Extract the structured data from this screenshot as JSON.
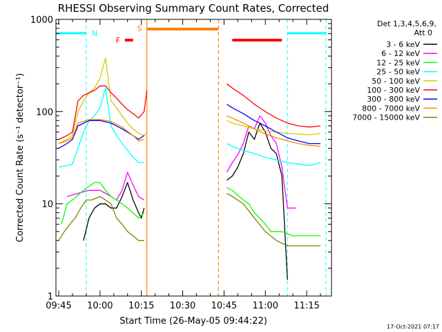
{
  "chart_data": {
    "type": "line",
    "title": "RHESSI Observing Summary Count Rates, Corrected",
    "ylabel": "Corrected Count Rate (s⁻¹ detector⁻¹)",
    "xlabel": "Start Time (26-May-05 09:44:22)",
    "footer": "17-Oct-2021 07:17",
    "y_scale": "log",
    "ylim": [
      1,
      1000
    ],
    "xlim": [
      "09:44",
      "11:24"
    ],
    "y_ticks": [
      {
        "v": 1,
        "label": "1"
      },
      {
        "v": 10,
        "label": "10"
      },
      {
        "v": 100,
        "label": "100"
      },
      {
        "v": 1000,
        "label": "1000"
      }
    ],
    "x_ticks": [
      {
        "t": "09:45",
        "label": "09:45"
      },
      {
        "t": "10:00",
        "label": "10:00"
      },
      {
        "t": "10:15",
        "label": "10:15"
      },
      {
        "t": "10:30",
        "label": "10:30"
      },
      {
        "t": "10:45",
        "label": "10:45"
      },
      {
        "t": "11:00",
        "label": "11:00"
      },
      {
        "t": "11:15",
        "label": "11:15"
      }
    ],
    "legend": {
      "header": [
        "Det 1,3,4,5,6,9,",
        "Att 0"
      ],
      "position": "right"
    },
    "series": [
      {
        "name": "3 - 6 keV",
        "color": "#000000",
        "segments": [
          [
            [
              "09:54",
              4
            ],
            [
              "09:56",
              7
            ],
            [
              "09:58",
              9
            ],
            [
              "10:00",
              10
            ],
            [
              "10:02",
              10
            ],
            [
              "10:04",
              9
            ],
            [
              "10:06",
              9
            ],
            [
              "10:08",
              12
            ],
            [
              "10:10",
              17
            ],
            [
              "10:12",
              11
            ],
            [
              "10:14",
              8
            ],
            [
              "10:15",
              7
            ],
            [
              "10:16",
              9
            ]
          ],
          [
            [
              "10:46",
              18
            ],
            [
              "10:48",
              20
            ],
            [
              "10:50",
              25
            ],
            [
              "10:52",
              35
            ],
            [
              "10:54",
              60
            ],
            [
              "10:56",
              50
            ],
            [
              "10:58",
              75
            ],
            [
              "11:00",
              60
            ],
            [
              "11:02",
              40
            ],
            [
              "11:04",
              35
            ],
            [
              "11:06",
              20
            ],
            [
              "11:08",
              1.5
            ]
          ]
        ]
      },
      {
        "name": "6 - 12 keV",
        "color": "#ff00ff",
        "segments": [
          [
            [
              "09:48",
              12
            ],
            [
              "09:52",
              13
            ],
            [
              "09:56",
              14
            ],
            [
              "10:00",
              14
            ],
            [
              "10:02",
              13
            ],
            [
              "10:04",
              12
            ],
            [
              "10:06",
              11
            ],
            [
              "10:08",
              14
            ],
            [
              "10:10",
              22
            ],
            [
              "10:12",
              16
            ],
            [
              "10:14",
              12
            ],
            [
              "10:16",
              11
            ]
          ],
          [
            [
              "10:46",
              22
            ],
            [
              "10:48",
              28
            ],
            [
              "10:50",
              34
            ],
            [
              "10:52",
              45
            ],
            [
              "10:54",
              70
            ],
            [
              "10:56",
              65
            ],
            [
              "10:58",
              90
            ],
            [
              "11:00",
              75
            ],
            [
              "11:02",
              55
            ],
            [
              "11:04",
              45
            ],
            [
              "11:06",
              25
            ],
            [
              "11:08",
              9
            ],
            [
              "11:11",
              9
            ]
          ]
        ]
      },
      {
        "name": "12 - 25 keV",
        "color": "#00ff00",
        "segments": [
          [
            [
              "09:46",
              6
            ],
            [
              "09:48",
              10
            ],
            [
              "09:50",
              11
            ],
            [
              "09:54",
              14
            ],
            [
              "09:58",
              17
            ],
            [
              "10:00",
              17
            ],
            [
              "10:02",
              14
            ],
            [
              "10:04",
              12
            ],
            [
              "10:06",
              11
            ],
            [
              "10:08",
              10
            ],
            [
              "10:10",
              9
            ],
            [
              "10:12",
              8
            ],
            [
              "10:14",
              7
            ],
            [
              "10:16",
              8
            ]
          ],
          [
            [
              "10:46",
              15
            ],
            [
              "10:48",
              14
            ],
            [
              "10:52",
              11
            ],
            [
              "10:54",
              10
            ],
            [
              "10:56",
              8
            ],
            [
              "10:58",
              7
            ],
            [
              "11:00",
              6
            ],
            [
              "11:02",
              5
            ],
            [
              "11:04",
              5
            ],
            [
              "11:06",
              5
            ],
            [
              "11:10",
              4.5
            ],
            [
              "11:14",
              4.5
            ],
            [
              "11:18",
              4.5
            ],
            [
              "11:20",
              4.5
            ]
          ]
        ]
      },
      {
        "name": "25 - 50 keV",
        "color": "#00ffff",
        "segments": [
          [
            [
              "09:45",
              25
            ],
            [
              "09:48",
              26
            ],
            [
              "09:50",
              27
            ],
            [
              "09:52",
              40
            ],
            [
              "09:54",
              60
            ],
            [
              "09:56",
              80
            ],
            [
              "09:58",
              90
            ],
            [
              "10:00",
              110
            ],
            [
              "10:02",
              180
            ],
            [
              "10:04",
              70
            ],
            [
              "10:06",
              55
            ],
            [
              "10:08",
              45
            ],
            [
              "10:10",
              38
            ],
            [
              "10:12",
              32
            ],
            [
              "10:14",
              28
            ],
            [
              "10:16",
              28
            ]
          ],
          [
            [
              "10:46",
              45
            ],
            [
              "10:48",
              42
            ],
            [
              "10:52",
              38
            ],
            [
              "10:56",
              35
            ],
            [
              "11:00",
              32
            ],
            [
              "11:04",
              30
            ],
            [
              "11:08",
              28
            ],
            [
              "11:12",
              27
            ],
            [
              "11:16",
              26
            ],
            [
              "11:20",
              28
            ]
          ]
        ]
      },
      {
        "name": "50 - 100 keV",
        "color": "#cccc00",
        "segments": [
          [
            [
              "09:45",
              45
            ],
            [
              "09:48",
              50
            ],
            [
              "09:50",
              55
            ],
            [
              "09:52",
              100
            ],
            [
              "09:54",
              130
            ],
            [
              "09:56",
              160
            ],
            [
              "09:58",
              180
            ],
            [
              "10:00",
              230
            ],
            [
              "10:02",
              380
            ],
            [
              "10:04",
              130
            ],
            [
              "10:06",
              110
            ],
            [
              "10:08",
              90
            ],
            [
              "10:10",
              75
            ],
            [
              "10:12",
              65
            ],
            [
              "10:14",
              58
            ],
            [
              "10:16",
              55
            ],
            [
              "10:17",
              60
            ]
          ],
          [
            [
              "10:46",
              80
            ],
            [
              "10:48",
              75
            ],
            [
              "10:52",
              70
            ],
            [
              "10:56",
              65
            ],
            [
              "11:00",
              62
            ],
            [
              "11:04",
              60
            ],
            [
              "11:08",
              58
            ],
            [
              "11:12",
              57
            ],
            [
              "11:16",
              56
            ],
            [
              "11:20",
              58
            ]
          ]
        ]
      },
      {
        "name": "100 - 300 keV",
        "color": "#ff0000",
        "segments": [
          [
            [
              "09:45",
              50
            ],
            [
              "09:48",
              55
            ],
            [
              "09:50",
              60
            ],
            [
              "09:52",
              130
            ],
            [
              "09:54",
              150
            ],
            [
              "09:56",
              160
            ],
            [
              "09:58",
              170
            ],
            [
              "10:00",
              190
            ],
            [
              "10:02",
              190
            ],
            [
              "10:04",
              160
            ],
            [
              "10:06",
              140
            ],
            [
              "10:08",
              120
            ],
            [
              "10:10",
              105
            ],
            [
              "10:12",
              95
            ],
            [
              "10:14",
              85
            ],
            [
              "10:16",
              100
            ],
            [
              "10:17",
              170
            ]
          ],
          [
            [
              "10:46",
              200
            ],
            [
              "10:48",
              180
            ],
            [
              "10:52",
              150
            ],
            [
              "10:56",
              120
            ],
            [
              "11:00",
              100
            ],
            [
              "11:04",
              85
            ],
            [
              "11:08",
              75
            ],
            [
              "11:12",
              70
            ],
            [
              "11:16",
              68
            ],
            [
              "11:20",
              70
            ]
          ]
        ]
      },
      {
        "name": "300 - 800 keV",
        "color": "#0000ff",
        "segments": [
          [
            [
              "09:45",
              40
            ],
            [
              "09:48",
              45
            ],
            [
              "09:50",
              50
            ],
            [
              "09:52",
              70
            ],
            [
              "09:56",
              80
            ],
            [
              "10:00",
              80
            ],
            [
              "10:04",
              75
            ],
            [
              "10:08",
              65
            ],
            [
              "10:12",
              55
            ],
            [
              "10:14",
              50
            ],
            [
              "10:16",
              55
            ]
          ],
          [
            [
              "10:46",
              120
            ],
            [
              "10:48",
              110
            ],
            [
              "10:52",
              95
            ],
            [
              "10:56",
              80
            ],
            [
              "11:00",
              70
            ],
            [
              "11:04",
              60
            ],
            [
              "11:08",
              52
            ],
            [
              "11:12",
              48
            ],
            [
              "11:16",
              45
            ],
            [
              "11:20",
              45
            ]
          ]
        ]
      },
      {
        "name": "800 - 7000 keV",
        "color": "#ff8800",
        "segments": [
          [
            [
              "09:45",
              45
            ],
            [
              "09:48",
              48
            ],
            [
              "09:50",
              52
            ],
            [
              "09:52",
              75
            ],
            [
              "09:56",
              82
            ],
            [
              "10:00",
              82
            ],
            [
              "10:04",
              78
            ],
            [
              "10:08",
              68
            ],
            [
              "10:12",
              55
            ],
            [
              "10:14",
              48
            ],
            [
              "10:16",
              50
            ]
          ],
          [
            [
              "10:46",
              90
            ],
            [
              "10:48",
              85
            ],
            [
              "10:52",
              75
            ],
            [
              "10:56",
              65
            ],
            [
              "11:00",
              57
            ],
            [
              "11:04",
              52
            ],
            [
              "11:08",
              48
            ],
            [
              "11:12",
              45
            ],
            [
              "11:16",
              43
            ],
            [
              "11:20",
              42
            ]
          ]
        ]
      },
      {
        "name": "7000 - 15000 keV",
        "color": "#808000",
        "segments": [
          [
            [
              "09:45",
              4
            ],
            [
              "09:47",
              5
            ],
            [
              "09:49",
              6
            ],
            [
              "09:51",
              7
            ],
            [
              "09:53",
              9
            ],
            [
              "09:55",
              11
            ],
            [
              "09:57",
              11
            ],
            [
              "10:00",
              12
            ],
            [
              "10:02",
              11
            ],
            [
              "10:04",
              10
            ],
            [
              "10:06",
              7
            ],
            [
              "10:08",
              6
            ],
            [
              "10:10",
              5
            ],
            [
              "10:12",
              4.5
            ],
            [
              "10:14",
              4
            ],
            [
              "10:16",
              4
            ]
          ],
          [
            [
              "10:46",
              13
            ],
            [
              "10:48",
              12
            ],
            [
              "10:52",
              10
            ],
            [
              "10:56",
              7
            ],
            [
              "11:00",
              5
            ],
            [
              "11:04",
              4
            ],
            [
              "11:08",
              3.5
            ],
            [
              "11:12",
              3.5
            ],
            [
              "11:16",
              3.5
            ],
            [
              "11:20",
              3.5
            ]
          ]
        ]
      }
    ],
    "annotations": {
      "saa": {
        "label": "S",
        "color": "#ff8000",
        "start": "10:17",
        "end": "10:43",
        "line_style": "dashed-end"
      },
      "night": {
        "label": "N",
        "color": "#00ffff",
        "intervals": [
          [
            "09:44",
            "09:55"
          ],
          [
            "11:08",
            "11:22"
          ]
        ]
      },
      "flare": {
        "label": "F",
        "color": "#ff0000",
        "intervals": [
          [
            "10:09",
            "10:12"
          ],
          [
            "10:48",
            "11:06"
          ]
        ]
      }
    }
  }
}
